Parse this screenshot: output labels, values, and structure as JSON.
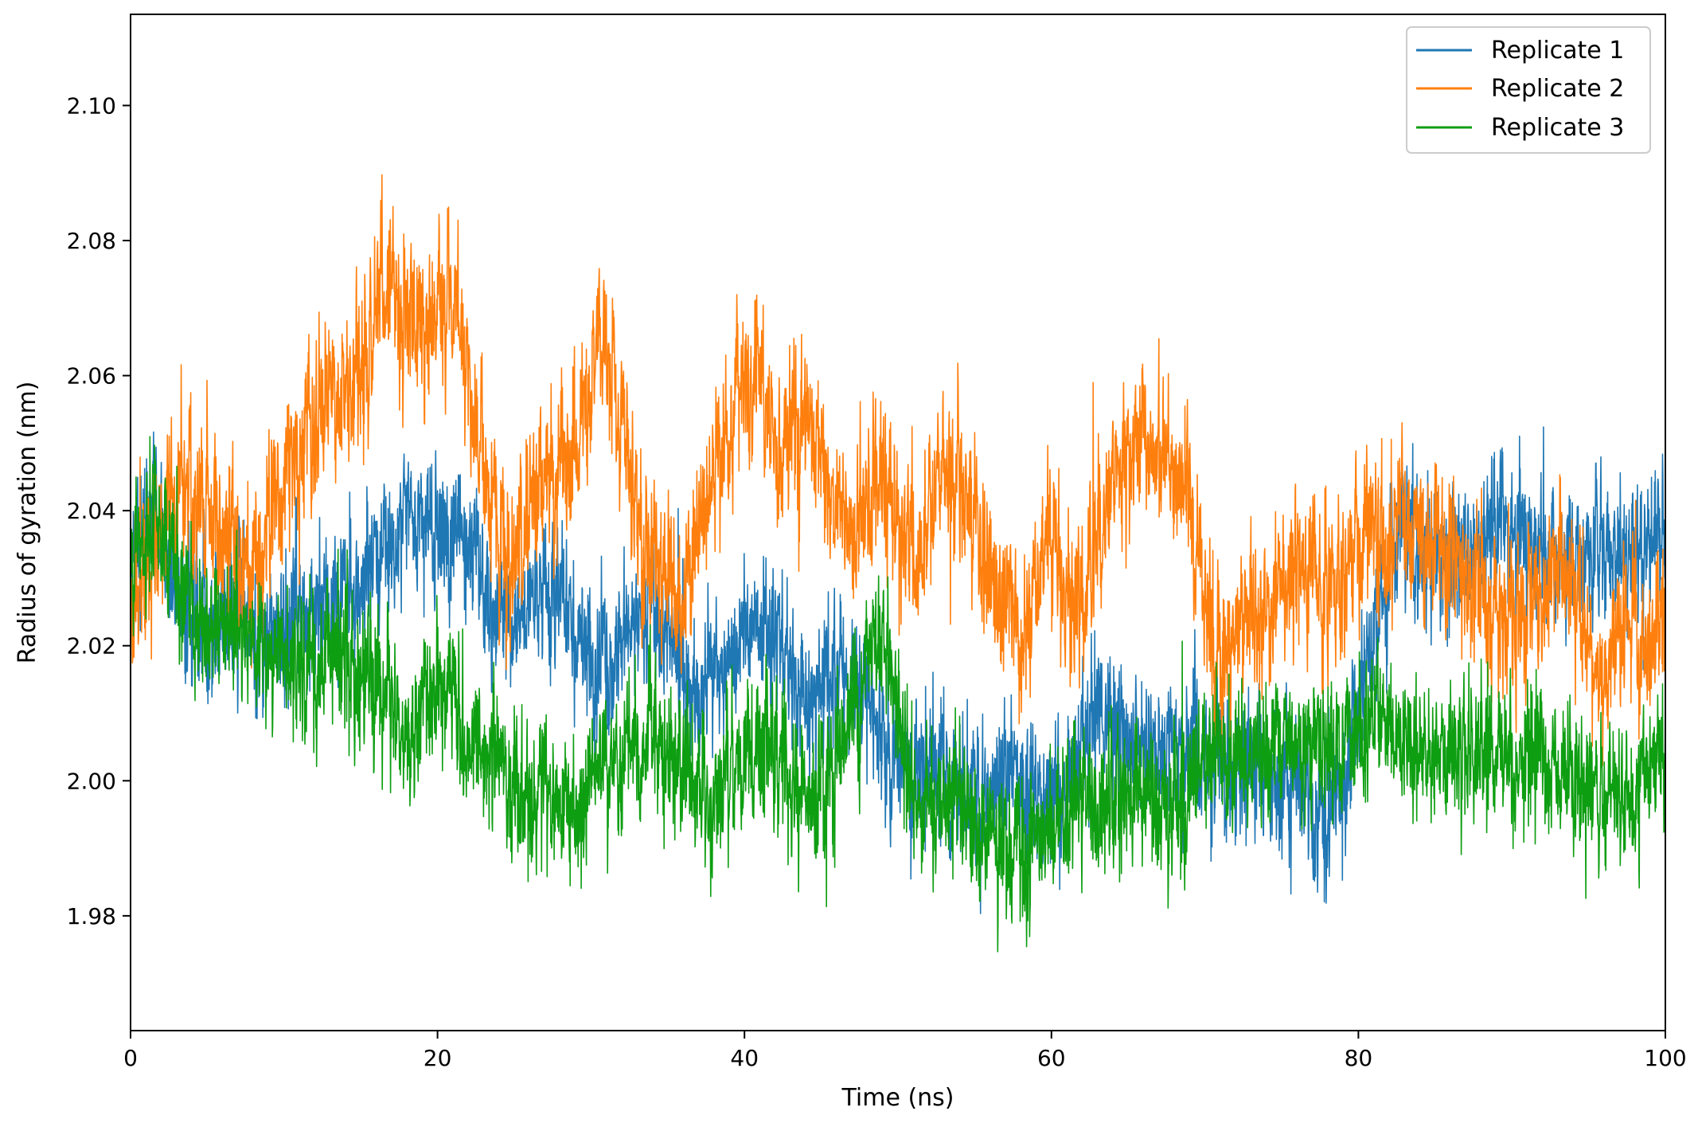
{
  "chart_data": {
    "type": "line",
    "title": "",
    "xlabel": "Time (ns)",
    "ylabel": "Radius of gyration (nm)",
    "xlim": [
      0,
      100
    ],
    "ylim": [
      1.963,
      2.1135
    ],
    "x_ticks": [
      0,
      20,
      40,
      60,
      80,
      100
    ],
    "x_tick_labels": [
      "0",
      "20",
      "40",
      "60",
      "80",
      "100"
    ],
    "y_ticks": [
      1.98,
      2.0,
      2.02,
      2.04,
      2.06,
      2.08,
      2.1
    ],
    "y_tick_labels": [
      "1.98",
      "2.00",
      "2.02",
      "2.04",
      "2.06",
      "2.08",
      "2.10"
    ],
    "grid": false,
    "legend_position": "top-right",
    "sampling_note": "approximate per-ns trend values; traces show dense thermal fluctuation around these",
    "series": [
      {
        "name": "Replicate 1",
        "color": "#1f77b4",
        "noise": 0.009,
        "x": [
          0,
          1,
          2,
          3,
          4,
          5,
          6,
          7,
          8,
          9,
          10,
          11,
          12,
          13,
          14,
          15,
          16,
          17,
          18,
          19,
          20,
          21,
          22,
          23,
          24,
          25,
          26,
          27,
          28,
          29,
          30,
          31,
          32,
          33,
          34,
          35,
          36,
          37,
          38,
          39,
          40,
          41,
          42,
          43,
          44,
          45,
          46,
          47,
          48,
          49,
          50,
          51,
          52,
          53,
          54,
          55,
          56,
          57,
          58,
          59,
          60,
          61,
          62,
          63,
          64,
          65,
          66,
          67,
          68,
          69,
          70,
          71,
          72,
          73,
          74,
          75,
          76,
          77,
          78,
          79,
          80,
          81,
          82,
          83,
          84,
          85,
          86,
          87,
          88,
          89,
          90,
          91,
          92,
          93,
          94,
          95,
          96,
          97,
          98,
          99,
          100
        ],
        "y": [
          2.033,
          2.04,
          2.038,
          2.03,
          2.026,
          2.024,
          2.024,
          2.025,
          2.022,
          2.02,
          2.022,
          2.024,
          2.026,
          2.026,
          2.028,
          2.03,
          2.034,
          2.036,
          2.04,
          2.038,
          2.036,
          2.036,
          2.034,
          2.03,
          2.026,
          2.024,
          2.026,
          2.028,
          2.026,
          2.022,
          2.018,
          2.017,
          2.02,
          2.022,
          2.024,
          2.022,
          2.016,
          2.012,
          2.014,
          2.016,
          2.022,
          2.024,
          2.022,
          2.016,
          2.012,
          2.012,
          2.016,
          2.014,
          2.012,
          2.006,
          2.002,
          2.0,
          2.002,
          2.002,
          2.0,
          1.998,
          1.999,
          2.002,
          2.0,
          1.998,
          1.996,
          1.998,
          2.004,
          2.008,
          2.008,
          2.006,
          2.006,
          2.004,
          2.003,
          2.006,
          2.005,
          2.003,
          2.002,
          2.002,
          2.0,
          1.999,
          1.998,
          1.997,
          1.996,
          2.0,
          2.012,
          2.024,
          2.032,
          2.036,
          2.034,
          2.032,
          2.032,
          2.034,
          2.036,
          2.038,
          2.038,
          2.036,
          2.034,
          2.034,
          2.034,
          2.035,
          2.036,
          2.034,
          2.032,
          2.036,
          2.038
        ]
      },
      {
        "name": "Replicate 2",
        "color": "#ff7f0e",
        "noise": 0.01,
        "x": [
          0,
          1,
          2,
          3,
          4,
          5,
          6,
          7,
          8,
          9,
          10,
          11,
          12,
          13,
          14,
          15,
          16,
          17,
          18,
          19,
          20,
          21,
          22,
          23,
          24,
          25,
          26,
          27,
          28,
          29,
          30,
          31,
          32,
          33,
          34,
          35,
          36,
          37,
          38,
          39,
          40,
          41,
          42,
          43,
          44,
          45,
          46,
          47,
          48,
          49,
          50,
          51,
          52,
          53,
          54,
          55,
          56,
          57,
          58,
          59,
          60,
          61,
          62,
          63,
          64,
          65,
          66,
          67,
          68,
          69,
          70,
          71,
          72,
          73,
          74,
          75,
          76,
          77,
          78,
          79,
          80,
          81,
          82,
          83,
          84,
          85,
          86,
          87,
          88,
          89,
          90,
          91,
          92,
          93,
          94,
          95,
          96,
          97,
          98,
          99,
          100
        ],
        "y": [
          2.024,
          2.032,
          2.036,
          2.042,
          2.044,
          2.04,
          2.036,
          2.036,
          2.032,
          2.036,
          2.046,
          2.05,
          2.054,
          2.06,
          2.058,
          2.062,
          2.07,
          2.072,
          2.07,
          2.068,
          2.07,
          2.072,
          2.06,
          2.046,
          2.036,
          2.032,
          2.04,
          2.046,
          2.044,
          2.05,
          2.058,
          2.066,
          2.052,
          2.04,
          2.032,
          2.03,
          2.026,
          2.034,
          2.044,
          2.052,
          2.06,
          2.058,
          2.05,
          2.05,
          2.052,
          2.046,
          2.04,
          2.036,
          2.04,
          2.044,
          2.036,
          2.032,
          2.04,
          2.046,
          2.044,
          2.038,
          2.03,
          2.024,
          2.022,
          2.028,
          2.036,
          2.03,
          2.024,
          2.034,
          2.044,
          2.048,
          2.05,
          2.048,
          2.046,
          2.04,
          2.024,
          2.018,
          2.02,
          2.022,
          2.024,
          2.03,
          2.034,
          2.032,
          2.028,
          2.03,
          2.034,
          2.036,
          2.036,
          2.038,
          2.034,
          2.036,
          2.034,
          2.03,
          2.028,
          2.026,
          2.024,
          2.026,
          2.03,
          2.034,
          2.028,
          2.018,
          2.016,
          2.022,
          2.024,
          2.022,
          2.024
        ]
      },
      {
        "name": "Replicate 3",
        "color": "#0e9e12",
        "noise": 0.009,
        "x": [
          0,
          1,
          2,
          3,
          4,
          5,
          6,
          7,
          8,
          9,
          10,
          11,
          12,
          13,
          14,
          15,
          16,
          17,
          18,
          19,
          20,
          21,
          22,
          23,
          24,
          25,
          26,
          27,
          28,
          29,
          30,
          31,
          32,
          33,
          34,
          35,
          36,
          37,
          38,
          39,
          40,
          41,
          42,
          43,
          44,
          45,
          46,
          47,
          48,
          49,
          50,
          51,
          52,
          53,
          54,
          55,
          56,
          57,
          58,
          59,
          60,
          61,
          62,
          63,
          64,
          65,
          66,
          67,
          68,
          69,
          70,
          71,
          72,
          73,
          74,
          75,
          76,
          77,
          78,
          79,
          80,
          81,
          82,
          83,
          84,
          85,
          86,
          87,
          88,
          89,
          90,
          91,
          92,
          93,
          94,
          95,
          96,
          97,
          98,
          99,
          100
        ],
        "y": [
          2.032,
          2.036,
          2.04,
          2.03,
          2.024,
          2.022,
          2.024,
          2.022,
          2.02,
          2.018,
          2.016,
          2.016,
          2.018,
          2.02,
          2.018,
          2.016,
          2.014,
          2.012,
          2.008,
          2.01,
          2.014,
          2.012,
          2.008,
          2.005,
          2.002,
          1.998,
          1.996,
          1.998,
          1.996,
          1.996,
          1.998,
          2.002,
          2.004,
          2.006,
          2.006,
          2.004,
          2.002,
          2.002,
          2.0,
          2.002,
          2.004,
          2.004,
          2.002,
          2.0,
          1.998,
          1.996,
          2.004,
          2.012,
          2.018,
          2.02,
          2.01,
          1.998,
          1.996,
          1.997,
          1.996,
          1.994,
          1.992,
          1.99,
          1.988,
          1.99,
          1.992,
          1.994,
          1.996,
          1.998,
          2.0,
          1.998,
          1.996,
          1.995,
          1.996,
          1.999,
          2.002,
          2.004,
          2.002,
          2.002,
          2.004,
          2.006,
          2.006,
          2.005,
          2.004,
          2.004,
          2.006,
          2.008,
          2.008,
          2.006,
          2.005,
          2.004,
          2.004,
          2.005,
          2.006,
          2.004,
          2.004,
          2.003,
          2.002,
          2.0,
          1.999,
          1.999,
          1.998,
          1.996,
          1.997,
          2.002,
          2.006
        ]
      }
    ]
  }
}
